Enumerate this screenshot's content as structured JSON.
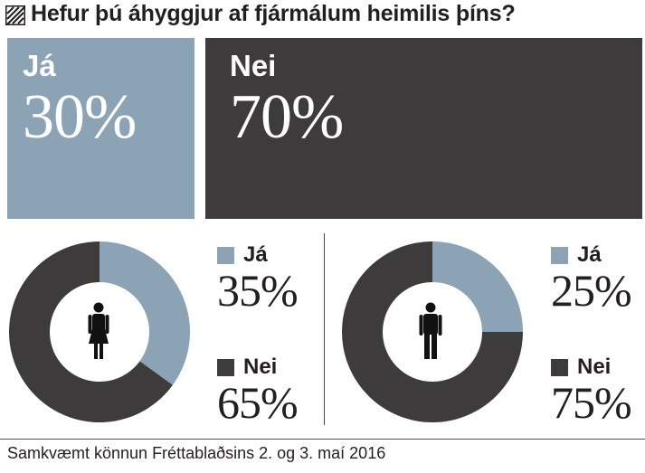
{
  "title": "Hefur þú áhyggjur af fjármálum heimilis þíns?",
  "icons": {
    "header": "hatch-icon",
    "women": "woman-icon",
    "men": "man-icon"
  },
  "colors": {
    "yes": "#8ca2b5",
    "no": "#3e3b3c",
    "text": "#231f20"
  },
  "chart_data": [
    {
      "type": "bar",
      "title": "Hefur þú áhyggjur af fjármálum heimilis þíns?",
      "categories": [
        "Já",
        "Nei"
      ],
      "values": [
        30,
        70
      ],
      "labels": [
        "30%",
        "70%"
      ],
      "unit": "%"
    },
    {
      "type": "pie",
      "group_icon": "woman-icon",
      "categories": [
        "Já",
        "Nei"
      ],
      "values": [
        35,
        65
      ],
      "labels": [
        "35%",
        "65%"
      ],
      "unit": "%"
    },
    {
      "type": "pie",
      "group_icon": "man-icon",
      "categories": [
        "Já",
        "Nei"
      ],
      "values": [
        25,
        75
      ],
      "labels": [
        "25%",
        "75%"
      ],
      "unit": "%"
    }
  ],
  "source": "Samkvæmt könnun Fréttablaðsins 2. og 3. maí 2016"
}
